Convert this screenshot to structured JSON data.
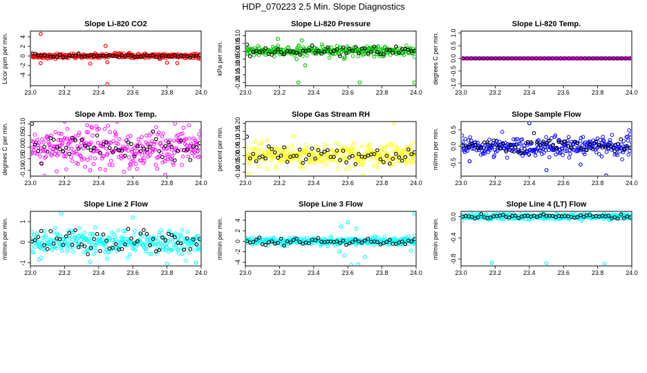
{
  "figure": {
    "title": "HDP_070223  2.5 Min. Slope Diagnostics"
  },
  "colors": {
    "frame": "#000000",
    "reference": "#000000"
  },
  "chart_data": [
    {
      "type": "scatter",
      "title": "Slope Li-820 CO2",
      "ylabel": "Licor ppm per min.",
      "color": "#ff0000",
      "xlim": [
        23.0,
        24.0
      ],
      "ylim": [
        -6.2,
        5.2
      ],
      "xticks": [
        "23.0",
        "23.2",
        "23.4",
        "23.6",
        "23.8",
        "24.0"
      ],
      "yticks": [
        "-4",
        "-2",
        "0",
        "2",
        "4"
      ],
      "center": 0,
      "spread": 0.25,
      "ref_spread": 0.2,
      "outliers": [
        [
          23.06,
          4.6
        ],
        [
          23.06,
          -1.5
        ],
        [
          23.44,
          2.1
        ],
        [
          23.45,
          -1.3
        ],
        [
          23.45,
          -5.9
        ],
        [
          23.35,
          -1.6
        ],
        [
          23.76,
          -0.6
        ],
        [
          23.8,
          -1.4
        ],
        [
          23.86,
          -1.5
        ]
      ]
    },
    {
      "type": "scatter",
      "title": "Slope Li-820 Pressure",
      "ylabel": "kPa per min.",
      "color": "#00c000",
      "xlim": [
        23.0,
        24.0
      ],
      "ylim": [
        -0.22,
        0.13
      ],
      "xticks": [
        "23.0",
        "23.2",
        "23.4",
        "23.6",
        "23.8",
        "24.0"
      ],
      "yticks": [
        "-0.20",
        "-0.15",
        "-0.10",
        "-0.05",
        "0.00",
        "0.05",
        "0.10"
      ],
      "center": 0.0,
      "spread": 0.015,
      "ref_spread": 0.015,
      "outliers": [
        [
          23.31,
          -0.2
        ],
        [
          23.67,
          -0.2
        ],
        [
          23.99,
          -0.2
        ],
        [
          23.35,
          -0.09
        ],
        [
          23.19,
          0.08
        ],
        [
          23.33,
          0.07
        ],
        [
          23.3,
          -0.05
        ]
      ]
    },
    {
      "type": "scatter",
      "title": "Slope Li-820 Temp.",
      "ylabel": "degrees C per min.",
      "color": "#ff00ff",
      "xlim": [
        23.0,
        24.0
      ],
      "ylim": [
        -1.08,
        1.08
      ],
      "xticks": [
        "23.0",
        "23.2",
        "23.4",
        "23.6",
        "23.8",
        "24.0"
      ],
      "yticks": [
        "-1.0",
        "-0.5",
        "0.0",
        "0.5",
        "1.0"
      ],
      "center": 0,
      "spread": 0,
      "ref_spread": 0,
      "outliers": []
    },
    {
      "type": "scatter",
      "title": "Slope Amb. Box Temp.",
      "ylabel": "degrees C per min.",
      "color": "#ff00ff",
      "xlim": [
        23.0,
        24.0
      ],
      "ylim": [
        -0.125,
        0.11
      ],
      "xticks": [
        "23.0",
        "23.2",
        "23.4",
        "23.6",
        "23.8",
        "24.0"
      ],
      "yticks": [
        "-0.10",
        "-0.05",
        "0.00",
        "0.05",
        "0.10"
      ],
      "center": 0,
      "spread": 0.045,
      "ref_spread": 0.03,
      "outliers": [
        [
          23.2,
          0.11
        ],
        [
          23.79,
          -0.12
        ],
        [
          23.35,
          -0.1
        ]
      ]
    },
    {
      "type": "scatter",
      "title": "Slope Gas Stream RH",
      "ylabel": "percent per min.",
      "color": "#ffff00",
      "xlim": [
        23.0,
        24.0
      ],
      "ylim": [
        -0.125,
        0.21
      ],
      "xticks": [
        "23.0",
        "23.2",
        "23.4",
        "23.6",
        "23.8",
        "24.0"
      ],
      "yticks": [
        "-0.10",
        "-0.05",
        "0.00",
        "0.05",
        "0.10",
        "0.15",
        "0.20"
      ],
      "center": 0.0,
      "spread": 0.035,
      "ref_spread": 0.03,
      "outliers": [
        [
          23.87,
          0.2
        ],
        [
          23.69,
          -0.12
        ],
        [
          23.02,
          -0.11
        ],
        [
          23.28,
          0.12
        ]
      ]
    },
    {
      "type": "scatter",
      "title": "Slope Sample Flow",
      "ylabel": "ml/min per min.",
      "color": "#0000ff",
      "xlim": [
        23.0,
        24.0
      ],
      "ylim": [
        -0.9,
        0.75
      ],
      "xticks": [
        "23.0",
        "23.2",
        "23.4",
        "23.6",
        "23.8",
        "24.0"
      ],
      "yticks": [
        "-0.5",
        "0.0",
        "0.5"
      ],
      "center": 0,
      "spread": 0.15,
      "ref_spread": 0.1,
      "outliers": [
        [
          23.4,
          0.7
        ],
        [
          23.85,
          -0.88
        ],
        [
          23.5,
          -0.72
        ],
        [
          23.05,
          -0.45
        ],
        [
          23.7,
          -0.55
        ]
      ]
    },
    {
      "type": "scatter",
      "title": "Slope Line 2 Flow",
      "ylabel": "ml/min per min.",
      "color": "#00ffff",
      "xlim": [
        23.0,
        24.0
      ],
      "ylim": [
        -1.15,
        1.5
      ],
      "xticks": [
        "23.0",
        "23.2",
        "23.4",
        "23.6",
        "23.8",
        "24.0"
      ],
      "yticks": [
        "-1",
        "0",
        "1"
      ],
      "center": 0,
      "spread": 0.3,
      "ref_spread": 0.35,
      "outliers": [
        [
          23.18,
          1.4
        ],
        [
          23.05,
          -0.85
        ],
        [
          23.35,
          -0.95
        ],
        [
          23.8,
          -1.05
        ],
        [
          23.97,
          -1.0
        ],
        [
          23.6,
          1.2
        ],
        [
          23.45,
          -0.8
        ]
      ]
    },
    {
      "type": "scatter",
      "title": "Slope Line 3 Flow",
      "ylabel": "ml/min per min.",
      "color": "#00ffff",
      "xlim": [
        23.0,
        24.0
      ],
      "ylim": [
        -4.7,
        5.7
      ],
      "xticks": [
        "23.0",
        "23.2",
        "23.4",
        "23.6",
        "23.8",
        "24.0"
      ],
      "yticks": [
        "-4",
        "-2",
        "0",
        "2",
        "4"
      ],
      "center": 0,
      "spread": 0.35,
      "ref_spread": 0.3,
      "outliers": [
        [
          23.6,
          3.6
        ],
        [
          23.56,
          2.8
        ],
        [
          23.65,
          2.4
        ],
        [
          23.62,
          -4.5
        ],
        [
          23.66,
          -4.4
        ],
        [
          23.7,
          -3.0
        ],
        [
          23.58,
          -2.7
        ],
        [
          23.99,
          5.3
        ],
        [
          23.97,
          -1.8
        ],
        [
          23.55,
          -1.9
        ]
      ]
    },
    {
      "type": "scatter",
      "title": "Slope Line 4 (LT) Flow",
      "ylabel": "ml/min per min.",
      "color": "#00ffff",
      "xlim": [
        23.0,
        24.0
      ],
      "ylim": [
        -0.93,
        0.1
      ],
      "xticks": [
        "23.0",
        "23.2",
        "23.4",
        "23.6",
        "23.8",
        "24.0"
      ],
      "yticks": [
        "-0.8",
        "-0.4",
        "0.0"
      ],
      "center": 0,
      "spread": 0.03,
      "ref_spread": 0.02,
      "outliers": [
        [
          23.18,
          -0.87
        ],
        [
          23.5,
          -0.88
        ],
        [
          23.84,
          -0.89
        ]
      ]
    }
  ]
}
